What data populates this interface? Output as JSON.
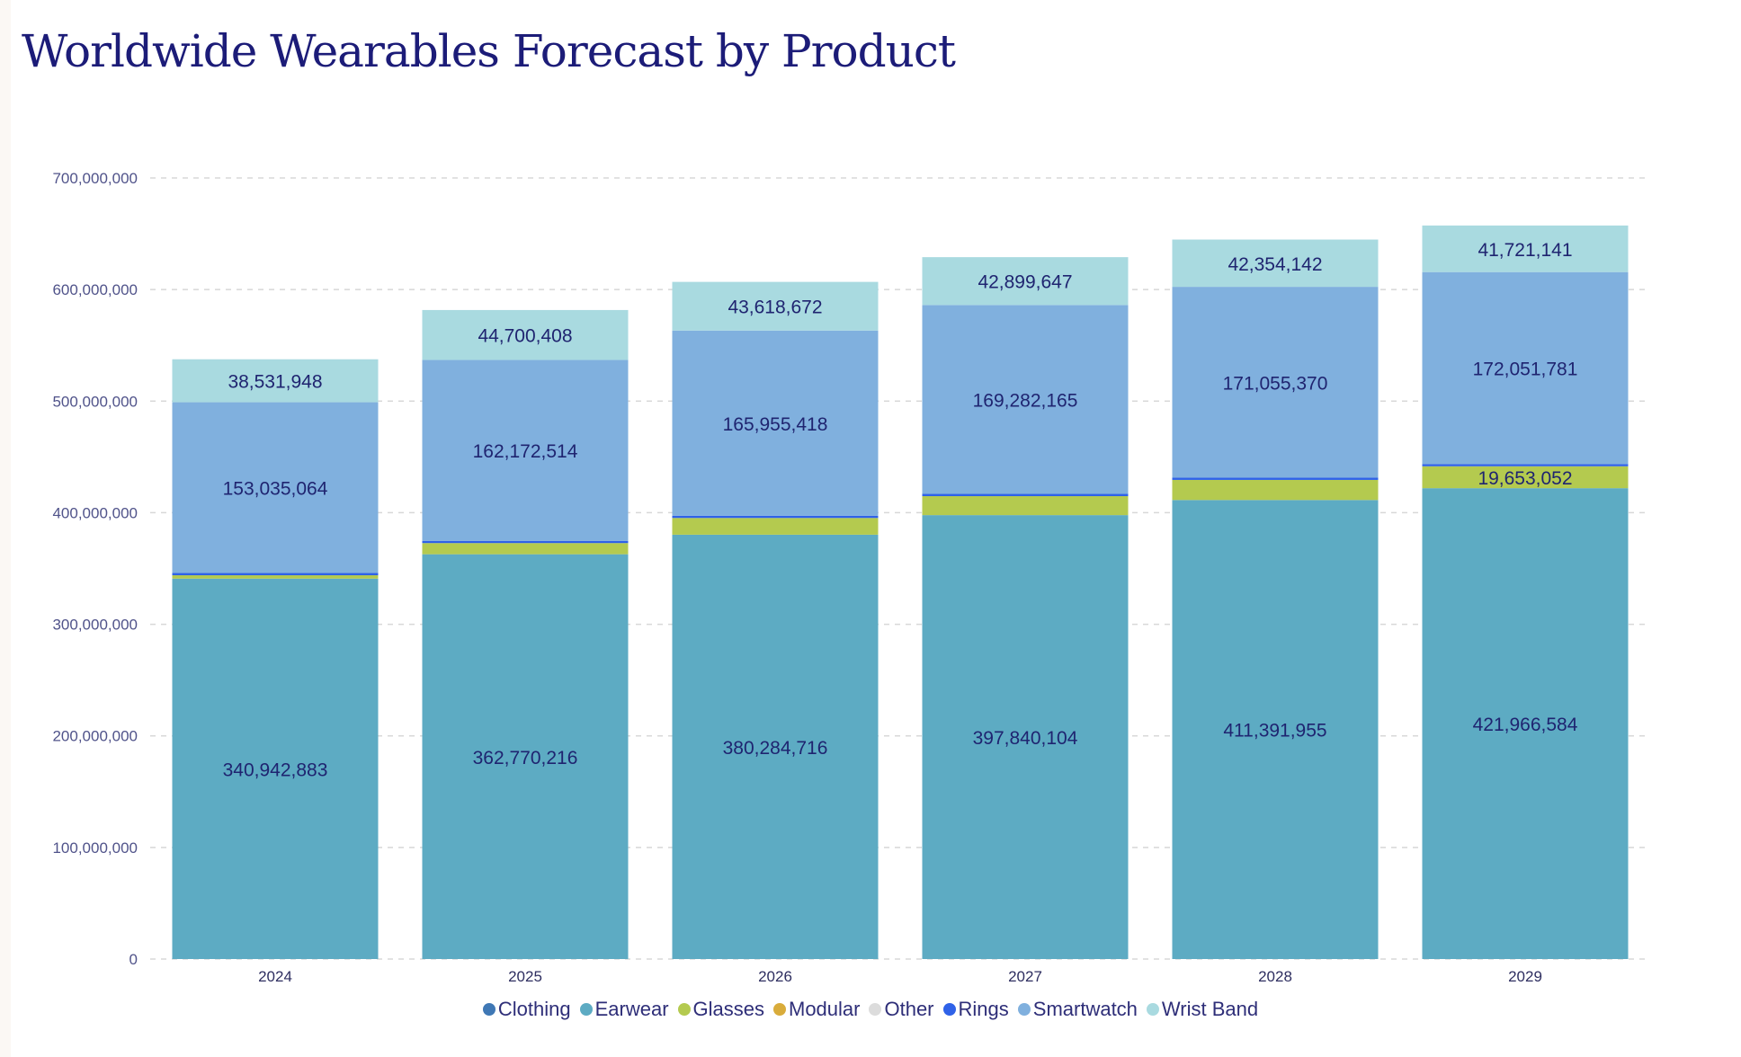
{
  "chart_data": {
    "type": "bar",
    "stacked": true,
    "title": "Worldwide Wearables Forecast by Product",
    "xlabel": "",
    "ylabel": "",
    "ylim": [
      0,
      700000000
    ],
    "yticks": [
      0,
      100000000,
      200000000,
      300000000,
      400000000,
      500000000,
      600000000,
      700000000
    ],
    "ytick_labels": [
      "0",
      "100,000,000",
      "200,000,000",
      "300,000,000",
      "400,000,000",
      "500,000,000",
      "600,000,000",
      "700,000,000"
    ],
    "grid": true,
    "legend_position": "bottom",
    "categories": [
      "2024",
      "2025",
      "2026",
      "2027",
      "2028",
      "2029"
    ],
    "series": [
      {
        "name": "Clothing",
        "color": "#3f78b5",
        "values": [
          0,
          0,
          0,
          0,
          0,
          0
        ],
        "data_labels": [
          null,
          null,
          null,
          null,
          null,
          null
        ]
      },
      {
        "name": "Earwear",
        "color": "#5dabc3",
        "values": [
          340942883,
          362770216,
          380284716,
          397840104,
          411391955,
          421966584
        ],
        "data_labels": [
          "340,942,883",
          "362,770,216",
          "380,284,716",
          "397,840,104",
          "411,391,955",
          "421,966,584"
        ]
      },
      {
        "name": "Glasses",
        "color": "#b4ca4f",
        "values": [
          3000000,
          10000000,
          15000000,
          17000000,
          18000000,
          19653052
        ],
        "data_labels": [
          null,
          null,
          null,
          null,
          null,
          "19,653,052"
        ]
      },
      {
        "name": "Modular",
        "color": "#d9ac3b",
        "values": [
          0,
          0,
          0,
          0,
          0,
          0
        ],
        "data_labels": [
          null,
          null,
          null,
          null,
          null,
          null
        ]
      },
      {
        "name": "Other",
        "color": "#dcdcdc",
        "values": [
          0,
          0,
          0,
          0,
          0,
          0
        ],
        "data_labels": [
          null,
          null,
          null,
          null,
          null,
          null
        ]
      },
      {
        "name": "Rings",
        "color": "#2f62e8",
        "values": [
          2000000,
          2000000,
          2000000,
          2000000,
          2000000,
          2000000
        ],
        "data_labels": [
          null,
          null,
          null,
          null,
          null,
          null
        ]
      },
      {
        "name": "Smartwatch",
        "color": "#80b0de",
        "values": [
          153035064,
          162172514,
          165955418,
          169282165,
          171055370,
          172051781
        ],
        "data_labels": [
          "153,035,064",
          "162,172,514",
          "165,955,418",
          "169,282,165",
          "171,055,370",
          "172,051,781"
        ]
      },
      {
        "name": "Wrist Band",
        "color": "#a9dae0",
        "values": [
          38531948,
          44700408,
          43618672,
          42899647,
          42354142,
          41721141
        ],
        "data_labels": [
          "38,531,948",
          "44,700,408",
          "43,618,672",
          "42,899,647",
          "42,354,142",
          "41,721,141"
        ]
      }
    ]
  }
}
